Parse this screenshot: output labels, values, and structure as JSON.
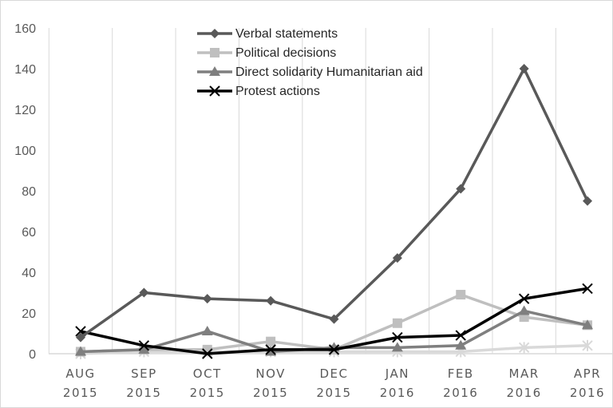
{
  "chart_data": {
    "type": "line",
    "title": "",
    "xlabel": "",
    "ylabel": "",
    "categories": [
      [
        "AUG",
        "2015"
      ],
      [
        "SEP",
        "2015"
      ],
      [
        "OCT",
        "2015"
      ],
      [
        "NOV",
        "2015"
      ],
      [
        "DEC",
        "2015"
      ],
      [
        "JAN",
        "2016"
      ],
      [
        "FEB",
        "2016"
      ],
      [
        "MAR",
        "2016"
      ],
      [
        "APR",
        "2016"
      ]
    ],
    "ylim": [
      0,
      160
    ],
    "yticks": [
      "0",
      "20",
      "40",
      "60",
      "80",
      "100",
      "120",
      "140",
      "160"
    ],
    "grid": "vertical",
    "legend_position": "top-center",
    "series": [
      {
        "name": "Verbal statements",
        "values": [
          8,
          30,
          27,
          26,
          17,
          47,
          81,
          140,
          75
        ],
        "color": "#595959",
        "marker": "diamond"
      },
      {
        "name": "Political decisions",
        "values": [
          1,
          2,
          2,
          6,
          2,
          15,
          29,
          18,
          14
        ],
        "color": "#bfbfbf",
        "marker": "square"
      },
      {
        "name": "Direct solidarity Humanitarian aid",
        "values": [
          1,
          2,
          11,
          1,
          3,
          3,
          4,
          21,
          14
        ],
        "color": "#7f7f7f",
        "marker": "triangle"
      },
      {
        "name": "Protest actions",
        "values": [
          11,
          4,
          0,
          2,
          2,
          8,
          9,
          27,
          32
        ],
        "color": "#000000",
        "marker": "x"
      },
      {
        "name": "",
        "values": [
          0,
          1,
          1,
          1,
          1,
          1,
          1,
          3,
          4
        ],
        "color": "#d9d9d9",
        "marker": "star"
      }
    ]
  }
}
